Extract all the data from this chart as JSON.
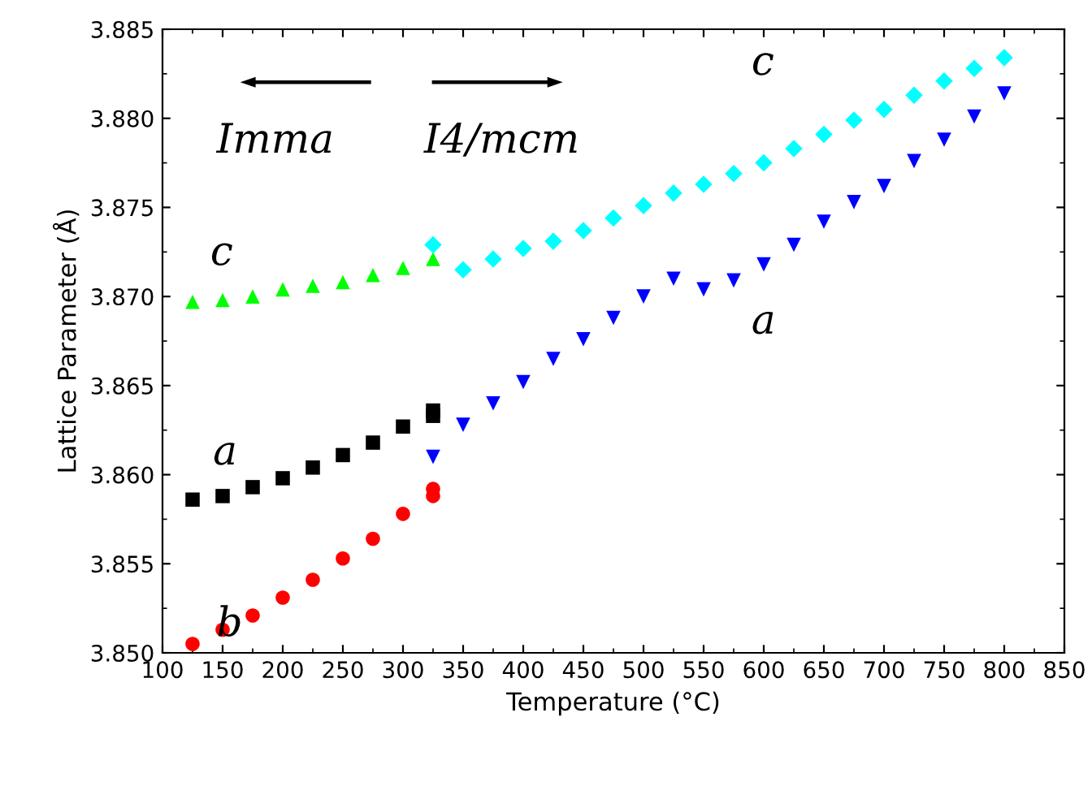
{
  "chart_data": {
    "type": "scatter",
    "xlabel": "Temperature (°C)",
    "ylabel": "Lattice Parameter (Å)",
    "xlim": [
      100,
      850
    ],
    "xticks": [
      100,
      150,
      200,
      250,
      300,
      350,
      400,
      450,
      500,
      550,
      600,
      650,
      700,
      750,
      800,
      850
    ],
    "ylim": [
      3.85,
      3.885
    ],
    "yticks": [
      {
        "value": 3.85,
        "label": "3.850"
      },
      {
        "value": 3.855,
        "label": "3.855"
      },
      {
        "value": 3.86,
        "label": "3.860"
      },
      {
        "value": 3.865,
        "label": "3.865"
      },
      {
        "value": 3.87,
        "label": "3.870"
      },
      {
        "value": 3.875,
        "label": "3.875"
      },
      {
        "value": 3.88,
        "label": "3.880"
      },
      {
        "value": 3.885,
        "label": "3.885"
      }
    ],
    "grid": false,
    "legend": false,
    "series": [
      {
        "color": "#00ff00",
        "marker": "triangle",
        "x": [
          125,
          150,
          175,
          200,
          225,
          250,
          275,
          300,
          325
        ],
        "values": [
          3.8697,
          3.8698,
          3.87,
          3.8704,
          3.8706,
          3.8708,
          3.8712,
          3.8716,
          3.8721
        ]
      },
      {
        "color": "#000000",
        "marker": "square",
        "x": [
          125,
          150,
          175,
          200,
          225,
          250,
          275,
          300,
          325,
          325
        ],
        "values": [
          3.8586,
          3.8588,
          3.8593,
          3.8598,
          3.8604,
          3.8611,
          3.8618,
          3.8627,
          3.8633,
          3.8636
        ]
      },
      {
        "color": "#ff0000",
        "marker": "circle",
        "x": [
          125,
          150,
          175,
          200,
          225,
          250,
          275,
          300,
          325,
          325
        ],
        "values": [
          3.8505,
          3.8513,
          3.8521,
          3.8531,
          3.8541,
          3.8553,
          3.8564,
          3.8578,
          3.8588,
          3.8592
        ]
      },
      {
        "color": "#00ffff",
        "marker": "diamond",
        "x": [
          325,
          350,
          375,
          400,
          425,
          450,
          475,
          500,
          525,
          550,
          575,
          600,
          625,
          650,
          675,
          700,
          725,
          750,
          775,
          800
        ],
        "values": [
          3.8729,
          3.8715,
          3.8721,
          3.8727,
          3.8731,
          3.8737,
          3.8744,
          3.8751,
          3.8758,
          3.8763,
          3.8769,
          3.8775,
          3.8783,
          3.8791,
          3.8799,
          3.8805,
          3.8813,
          3.8821,
          3.8828,
          3.8834
        ]
      },
      {
        "color": "#0000ff",
        "marker": "triangle_down",
        "x": [
          325,
          350,
          375,
          400,
          425,
          450,
          475,
          500,
          525,
          550,
          575,
          600,
          625,
          650,
          675,
          700,
          725,
          750,
          775,
          800
        ],
        "values": [
          3.861,
          3.8628,
          3.864,
          3.8652,
          3.8665,
          3.8676,
          3.8688,
          3.87,
          3.871,
          3.8704,
          3.8709,
          3.8718,
          3.8729,
          3.8742,
          3.8753,
          3.8762,
          3.8776,
          3.8788,
          3.8801,
          3.8814
        ]
      }
    ],
    "annotations": [
      "c",
      "a",
      "b",
      "c",
      "a",
      "Imma",
      "I4/mcm"
    ]
  }
}
